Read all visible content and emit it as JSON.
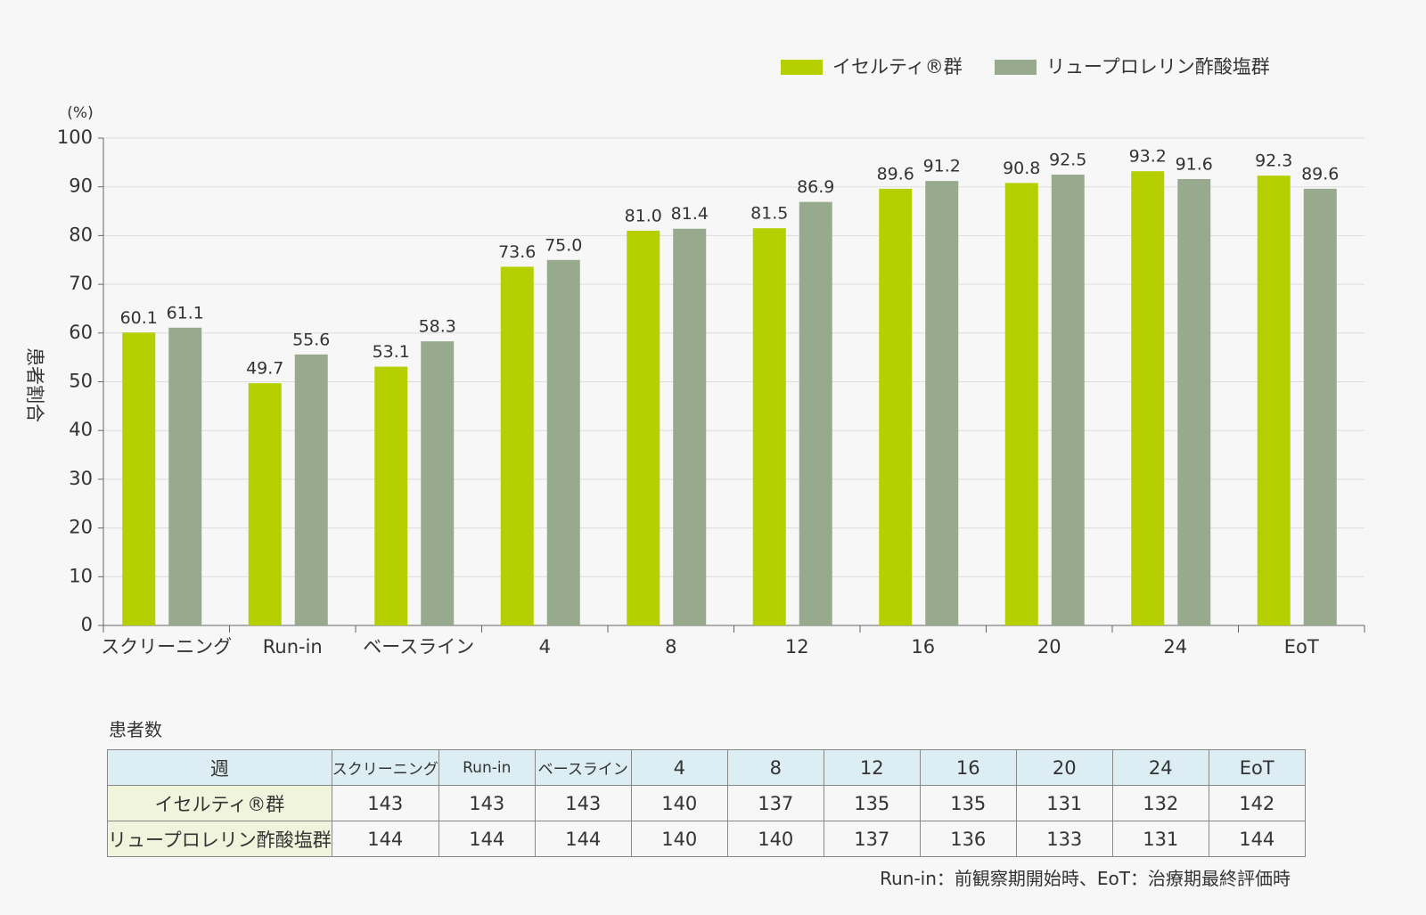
{
  "chart_data": {
    "type": "bar",
    "y_unit": "(%)",
    "y_label": "患者割合",
    "categories": [
      "スクリーニング",
      "Run-in",
      "ベースライン",
      "4",
      "8",
      "12",
      "16",
      "20",
      "24",
      "EoT"
    ],
    "series": [
      {
        "name": "イセルティ®群",
        "color": "#b5cf00",
        "values": [
          60.1,
          49.7,
          53.1,
          73.6,
          81.0,
          81.5,
          89.6,
          90.8,
          93.2,
          92.3
        ],
        "value_labels": [
          "60.1",
          "49.7",
          "53.1",
          "73.6",
          "81.0",
          "81.5",
          "89.6",
          "90.8",
          "93.2",
          "92.3"
        ]
      },
      {
        "name": "リュープロレリン酢酸塩群",
        "color": "#97aa8d",
        "values": [
          61.1,
          55.6,
          58.3,
          75.0,
          81.4,
          86.9,
          91.2,
          92.5,
          91.6,
          89.6
        ],
        "value_labels": [
          "61.1",
          "55.6",
          "58.3",
          "75.0",
          "81.4",
          "86.9",
          "91.2",
          "92.5",
          "91.6",
          "89.6"
        ]
      }
    ],
    "ylim": [
      0,
      100
    ],
    "yticks": [
      0,
      10,
      20,
      30,
      40,
      50,
      60,
      70,
      80,
      90,
      100
    ],
    "grid": true,
    "legend": "top-right"
  },
  "table": {
    "title": "患者数",
    "header": [
      "週",
      "スクリーニング",
      "Run-in",
      "ベースライン",
      "4",
      "8",
      "12",
      "16",
      "20",
      "24",
      "EoT"
    ],
    "rows": [
      {
        "label": "イセルティ®群",
        "values": [
          143,
          143,
          143,
          140,
          137,
          135,
          135,
          131,
          132,
          142
        ]
      },
      {
        "label": "リュープロレリン酢酸塩群",
        "values": [
          144,
          144,
          144,
          140,
          140,
          137,
          136,
          133,
          131,
          144
        ]
      }
    ]
  },
  "footnote": "Run-in：前観察期開始時、EoT：治療期最終評価時"
}
